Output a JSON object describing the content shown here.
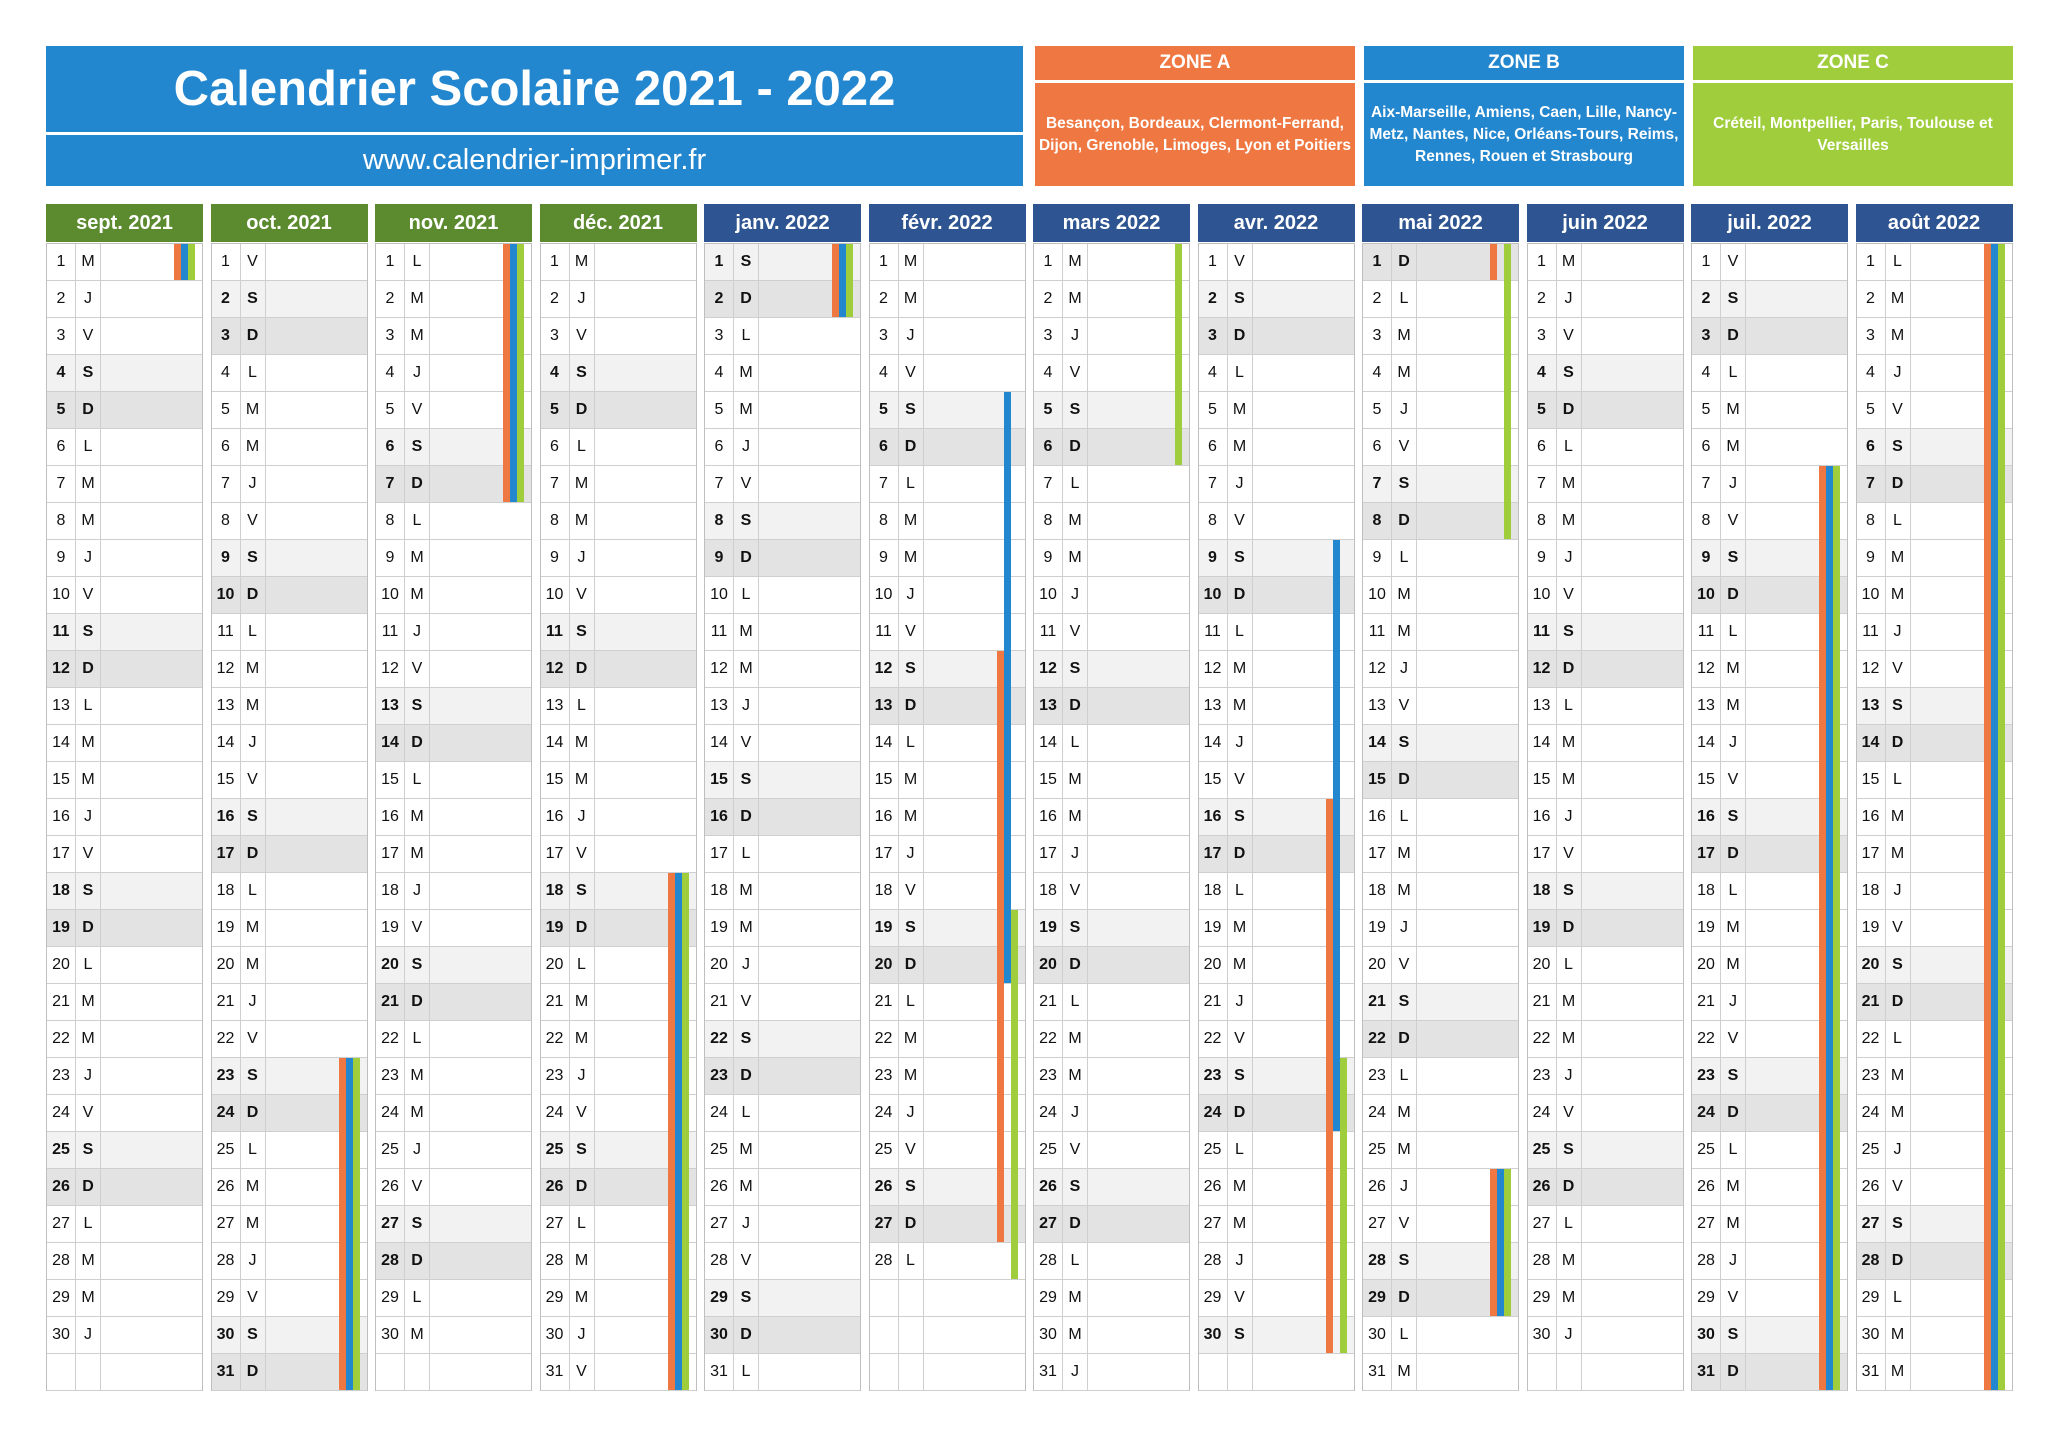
{
  "title": "Calendrier Scolaire 2021 - 2022",
  "url": "www.calendrier-imprimer.fr",
  "colors": {
    "zone_a": "#ef7741",
    "zone_b": "#2387cf",
    "zone_c": "#9fcd3c",
    "header_green": "#5b8a2f",
    "header_blue": "#2e5591"
  },
  "zones": [
    {
      "id": "A",
      "title": "ZONE A",
      "cities": "Besançon, Bordeaux, Clermont-Ferrand, Dijon, Grenoble, Limoges, Lyon et Poitiers"
    },
    {
      "id": "B",
      "title": "ZONE B",
      "cities": "Aix-Marseille, Amiens, Caen, Lille, Nancy-Metz, Nantes, Nice, Orléans-Tours, Reims, Rennes, Rouen et Strasbourg"
    },
    {
      "id": "C",
      "title": "ZONE C",
      "cities": "Créteil, Montpellier, Paris, Toulouse et Versailles"
    }
  ],
  "months": [
    {
      "name": "sept. 2021",
      "year": 2021,
      "month": 9,
      "days": 30,
      "header": "green",
      "holidays": {
        "A": [
          [
            1,
            1
          ]
        ],
        "B": [
          [
            1,
            1
          ]
        ],
        "C": [
          [
            1,
            1
          ]
        ]
      }
    },
    {
      "name": "oct. 2021",
      "year": 2021,
      "month": 10,
      "days": 31,
      "header": "green",
      "holidays": {
        "A": [
          [
            23,
            31
          ]
        ],
        "B": [
          [
            23,
            31
          ]
        ],
        "C": [
          [
            23,
            31
          ]
        ]
      }
    },
    {
      "name": "nov. 2021",
      "year": 2021,
      "month": 11,
      "days": 30,
      "header": "green",
      "holidays": {
        "A": [
          [
            1,
            7
          ]
        ],
        "B": [
          [
            1,
            7
          ]
        ],
        "C": [
          [
            1,
            7
          ]
        ]
      }
    },
    {
      "name": "déc. 2021",
      "year": 2021,
      "month": 12,
      "days": 31,
      "header": "green",
      "holidays": {
        "A": [
          [
            18,
            31
          ]
        ],
        "B": [
          [
            18,
            31
          ]
        ],
        "C": [
          [
            18,
            31
          ]
        ]
      }
    },
    {
      "name": "janv. 2022",
      "year": 2022,
      "month": 1,
      "days": 31,
      "header": "blue",
      "holidays": {
        "A": [
          [
            1,
            2
          ]
        ],
        "B": [
          [
            1,
            2
          ]
        ],
        "C": [
          [
            1,
            2
          ]
        ]
      }
    },
    {
      "name": "févr. 2022",
      "year": 2022,
      "month": 2,
      "days": 28,
      "header": "blue",
      "holidays": {
        "A": [
          [
            12,
            27
          ]
        ],
        "B": [
          [
            5,
            20
          ]
        ],
        "C": [
          [
            19,
            28
          ]
        ]
      }
    },
    {
      "name": "mars 2022",
      "year": 2022,
      "month": 3,
      "days": 31,
      "header": "blue",
      "holidays": {
        "A": [],
        "B": [],
        "C": [
          [
            1,
            6
          ]
        ]
      }
    },
    {
      "name": "avr. 2022",
      "year": 2022,
      "month": 4,
      "days": 30,
      "header": "blue",
      "holidays": {
        "A": [
          [
            16,
            30
          ]
        ],
        "B": [
          [
            9,
            24
          ]
        ],
        "C": [
          [
            23,
            30
          ]
        ]
      }
    },
    {
      "name": "mai 2022",
      "year": 2022,
      "month": 5,
      "days": 31,
      "header": "blue",
      "holidays": {
        "A": [
          [
            1,
            1
          ],
          [
            26,
            29
          ]
        ],
        "B": [
          [
            26,
            29
          ]
        ],
        "C": [
          [
            1,
            8
          ],
          [
            26,
            29
          ]
        ]
      }
    },
    {
      "name": "juin 2022",
      "year": 2022,
      "month": 6,
      "days": 30,
      "header": "blue",
      "holidays": {
        "A": [],
        "B": [],
        "C": []
      }
    },
    {
      "name": "juil. 2022",
      "year": 2022,
      "month": 7,
      "days": 31,
      "header": "blue",
      "holidays": {
        "A": [
          [
            7,
            31
          ]
        ],
        "B": [
          [
            7,
            31
          ]
        ],
        "C": [
          [
            7,
            31
          ]
        ]
      }
    },
    {
      "name": "août 2022",
      "year": 2022,
      "month": 8,
      "days": 31,
      "header": "blue",
      "holidays": {
        "A": [
          [
            1,
            31
          ]
        ],
        "B": [
          [
            1,
            31
          ]
        ],
        "C": [
          [
            1,
            31
          ]
        ]
      }
    }
  ],
  "weekday_letters": [
    "D",
    "L",
    "M",
    "M",
    "J",
    "V",
    "S"
  ]
}
